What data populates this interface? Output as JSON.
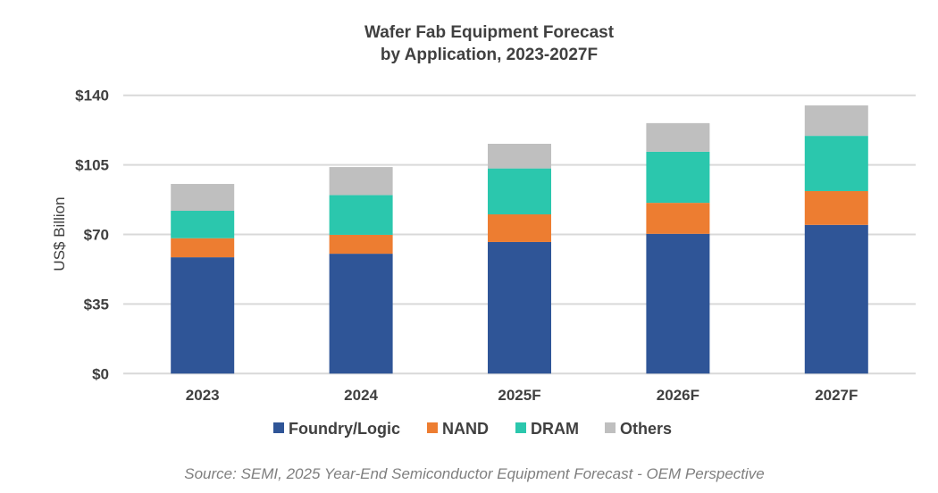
{
  "chart_data": {
    "type": "bar",
    "stacked": true,
    "title": "Wafer Fab Equipment Forecast",
    "subtitle": "by Application, 2023-2027F",
    "xlabel": "",
    "ylabel": "US$ Billion",
    "ylim": [
      0,
      140
    ],
    "yticks": [
      "$0",
      "$35",
      "$70",
      "$105",
      "$140"
    ],
    "ytick_values": [
      0,
      35,
      70,
      105,
      140
    ],
    "grid": true,
    "legend_position": "bottom",
    "categories": [
      "2023",
      "2024",
      "2025F",
      "2026F",
      "2027F"
    ],
    "series": [
      {
        "name": "Foundry/Logic",
        "color": "#2f5597",
        "values": [
          58.5,
          60.3,
          66.2,
          70.3,
          74.8
        ]
      },
      {
        "name": "NAND",
        "color": "#ed7d31",
        "values": [
          9.6,
          9.5,
          13.9,
          15.6,
          17.0
        ]
      },
      {
        "name": "DRAM",
        "color": "#2bc7ad",
        "values": [
          13.8,
          20.0,
          23.1,
          25.7,
          27.8
        ]
      },
      {
        "name": "Others",
        "color": "#bfbfbf",
        "values": [
          13.5,
          14.1,
          12.4,
          14.4,
          15.3
        ]
      }
    ],
    "source": "Source: SEMI, 2025 Year-End Semiconductor Equipment Forecast - OEM Perspective"
  }
}
